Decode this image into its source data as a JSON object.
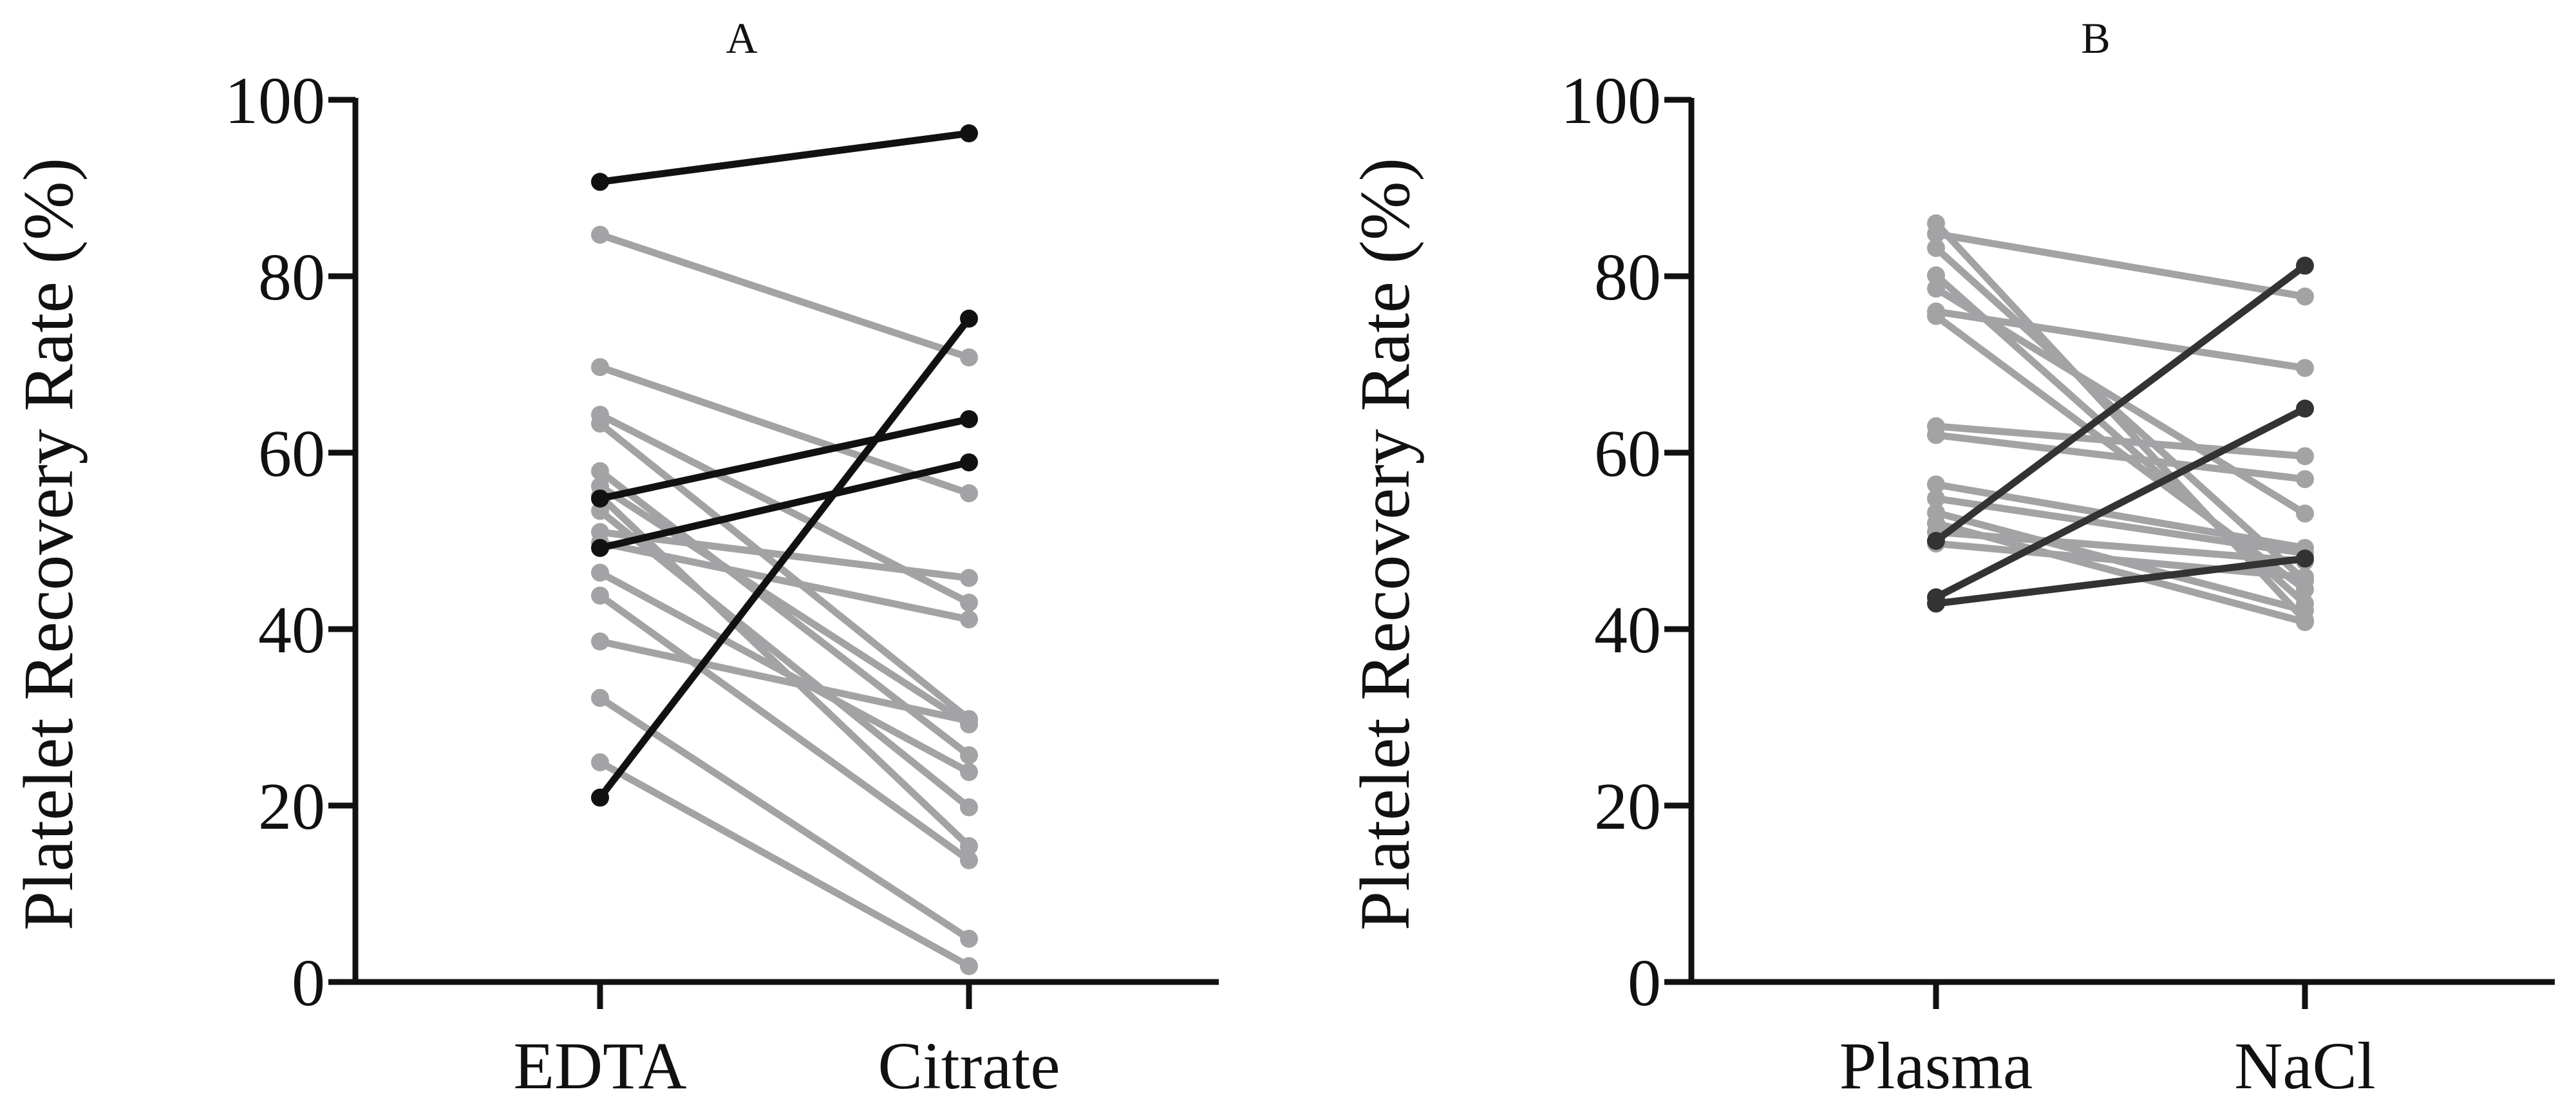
{
  "chart_data": [
    {
      "type": "line",
      "title": "A",
      "xlabel": "",
      "ylabel": "Platelet Recovery Rate (%)",
      "categories": [
        "EDTA",
        "Citrate"
      ],
      "ylim": [
        0,
        100
      ],
      "yticks": [
        0,
        20,
        40,
        60,
        80,
        100
      ],
      "yticklabels": [
        "0",
        "20",
        "40",
        "60",
        "80",
        "100"
      ],
      "colors": {
        "highlight": "#111111",
        "normal": "#a3a3a5"
      },
      "series": [
        {
          "name": "highlight-1",
          "highlight": true,
          "values": [
            90.7,
            96.2
          ]
        },
        {
          "name": "highlight-2",
          "highlight": true,
          "values": [
            20.9,
            75.2
          ]
        },
        {
          "name": "highlight-3",
          "highlight": true,
          "values": [
            54.8,
            63.8
          ]
        },
        {
          "name": "highlight-4",
          "highlight": true,
          "values": [
            49.2,
            58.9
          ]
        },
        {
          "name": "subject-1",
          "highlight": false,
          "values": [
            84.7,
            70.8
          ]
        },
        {
          "name": "subject-2",
          "highlight": false,
          "values": [
            69.7,
            55.4
          ]
        },
        {
          "name": "subject-3",
          "highlight": false,
          "values": [
            64.3,
            43.0
          ]
        },
        {
          "name": "subject-4",
          "highlight": false,
          "values": [
            63.3,
            29.8
          ]
        },
        {
          "name": "subject-5",
          "highlight": false,
          "values": [
            57.9,
            25.7
          ]
        },
        {
          "name": "subject-6",
          "highlight": false,
          "values": [
            56.2,
            29.2
          ]
        },
        {
          "name": "subject-7",
          "highlight": false,
          "values": [
            55.1,
            15.4
          ]
        },
        {
          "name": "subject-8",
          "highlight": false,
          "values": [
            53.4,
            19.8
          ]
        },
        {
          "name": "subject-9",
          "highlight": false,
          "values": [
            51.0,
            45.8
          ]
        },
        {
          "name": "subject-10",
          "highlight": false,
          "values": [
            49.8,
            41.1
          ]
        },
        {
          "name": "subject-11",
          "highlight": false,
          "values": [
            46.4,
            23.8
          ]
        },
        {
          "name": "subject-12",
          "highlight": false,
          "values": [
            43.8,
            13.8
          ]
        },
        {
          "name": "subject-13",
          "highlight": false,
          "values": [
            38.6,
            29.6
          ]
        },
        {
          "name": "subject-14",
          "highlight": false,
          "values": [
            32.2,
            4.9
          ]
        },
        {
          "name": "subject-15",
          "highlight": false,
          "values": [
            24.9,
            1.8
          ]
        }
      ]
    },
    {
      "type": "line",
      "title": "B",
      "xlabel": "",
      "ylabel": "Platelet Recovery Rate (%)",
      "categories": [
        "Plasma",
        "NaCl"
      ],
      "ylim": [
        0,
        100
      ],
      "yticks": [
        0,
        20,
        40,
        60,
        80,
        100
      ],
      "yticklabels": [
        "0",
        "20",
        "40",
        "60",
        "80",
        "100"
      ],
      "colors": {
        "highlight": "#333333",
        "normal": "#a3a3a5"
      },
      "series": [
        {
          "name": "highlight-1",
          "highlight": true,
          "values": [
            50.0,
            81.2
          ]
        },
        {
          "name": "highlight-2",
          "highlight": true,
          "values": [
            43.6,
            65.0
          ]
        },
        {
          "name": "highlight-3",
          "highlight": true,
          "values": [
            42.9,
            48.0
          ]
        },
        {
          "name": "subject-1",
          "highlight": false,
          "values": [
            86.0,
            41.0
          ]
        },
        {
          "name": "subject-2",
          "highlight": false,
          "values": [
            84.8,
            77.7
          ]
        },
        {
          "name": "subject-3",
          "highlight": false,
          "values": [
            83.2,
            45.5
          ]
        },
        {
          "name": "subject-4",
          "highlight": false,
          "values": [
            80.1,
            42.9
          ]
        },
        {
          "name": "subject-5",
          "highlight": false,
          "values": [
            78.6,
            53.1
          ]
        },
        {
          "name": "subject-6",
          "highlight": false,
          "values": [
            76.0,
            69.6
          ]
        },
        {
          "name": "subject-7",
          "highlight": false,
          "values": [
            75.5,
            44.5
          ]
        },
        {
          "name": "subject-8",
          "highlight": false,
          "values": [
            63.0,
            59.6
          ]
        },
        {
          "name": "subject-9",
          "highlight": false,
          "values": [
            62.0,
            57.0
          ]
        },
        {
          "name": "subject-10",
          "highlight": false,
          "values": [
            56.4,
            49.2
          ]
        },
        {
          "name": "subject-11",
          "highlight": false,
          "values": [
            54.8,
            48.6
          ]
        },
        {
          "name": "subject-12",
          "highlight": false,
          "values": [
            53.2,
            42.1
          ]
        },
        {
          "name": "subject-13",
          "highlight": false,
          "values": [
            52.0,
            40.8
          ]
        },
        {
          "name": "subject-14",
          "highlight": false,
          "values": [
            51.0,
            47.7
          ]
        },
        {
          "name": "subject-15",
          "highlight": false,
          "values": [
            49.7,
            45.9
          ]
        }
      ]
    }
  ]
}
